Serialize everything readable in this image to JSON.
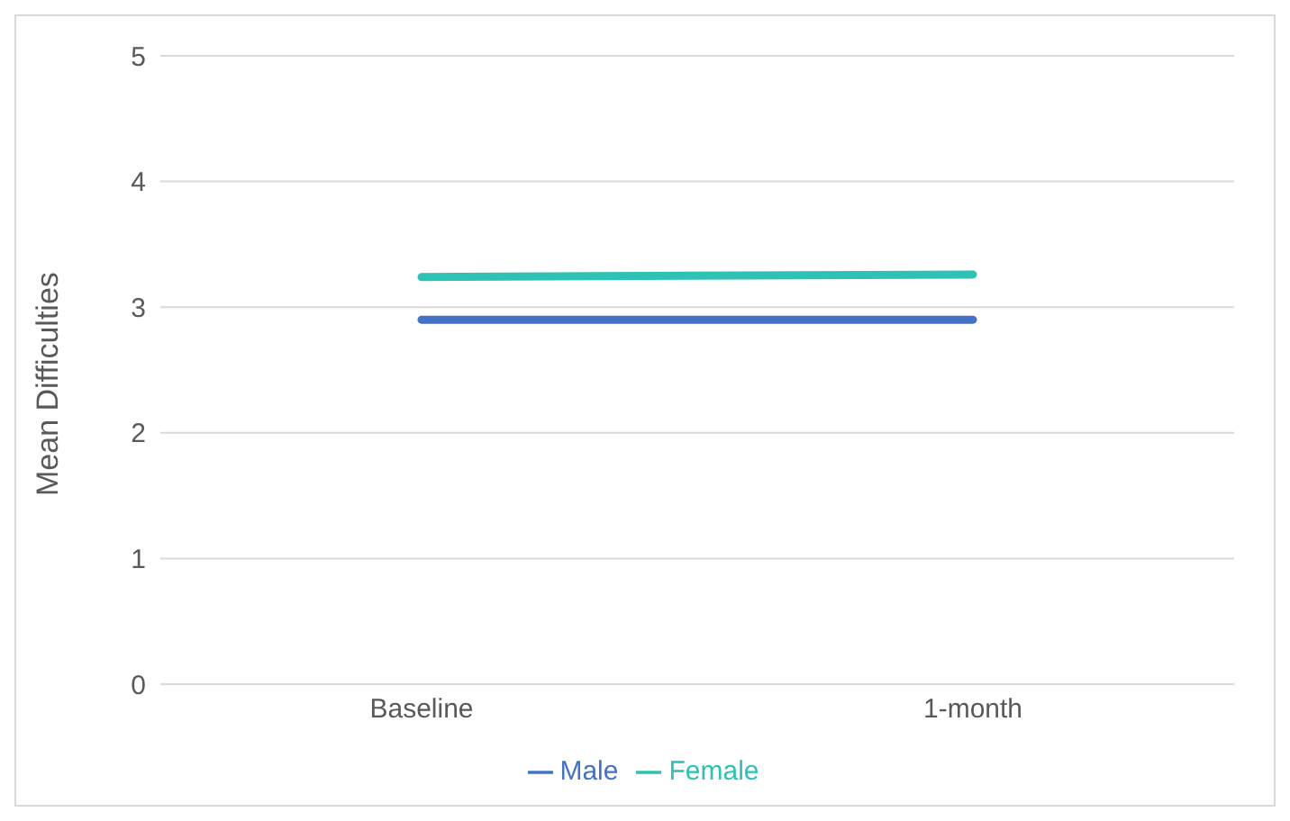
{
  "chart_data": {
    "type": "line",
    "ylabel": "Mean Difficulties",
    "categories": [
      "Baseline",
      "1-month"
    ],
    "series": [
      {
        "name": "Male",
        "color": "#4472c4",
        "values": [
          2.9,
          2.9
        ]
      },
      {
        "name": "Female",
        "color": "#2ec1b4",
        "values": [
          3.24,
          3.26
        ]
      }
    ],
    "ylim": [
      0,
      5
    ],
    "yticks": [
      0,
      1,
      2,
      3,
      4,
      5
    ],
    "grid": "y",
    "legend": "bottom",
    "marker": "none"
  }
}
